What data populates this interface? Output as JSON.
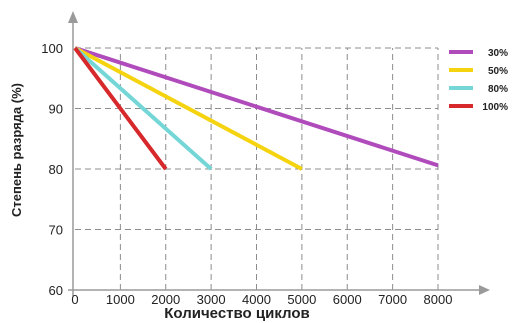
{
  "chart_data": {
    "type": "line",
    "xlabel": "Количество циклов",
    "ylabel": "Степень разряда (%)",
    "xlim": [
      0,
      8000
    ],
    "ylim": [
      60,
      100
    ],
    "x_ticks": [
      "0",
      "1000",
      "2000",
      "3000",
      "4000",
      "5000",
      "6000",
      "7000",
      "8000"
    ],
    "y_ticks": [
      "60",
      "70",
      "80",
      "90",
      "100"
    ],
    "grid": true,
    "legend_position": "top-right",
    "series": [
      {
        "name": "30%",
        "color": "#b04bbb",
        "x": [
          0,
          8000
        ],
        "y": [
          100,
          80.6
        ]
      },
      {
        "name": "50%",
        "color": "#f5d40f",
        "x": [
          0,
          5000
        ],
        "y": [
          100,
          80
        ]
      },
      {
        "name": "80%",
        "color": "#74d6d6",
        "x": [
          0,
          3000
        ],
        "y": [
          100,
          80
        ]
      },
      {
        "name": "100%",
        "color": "#d7282b",
        "x": [
          0,
          2000
        ],
        "y": [
          100,
          80
        ]
      }
    ]
  }
}
